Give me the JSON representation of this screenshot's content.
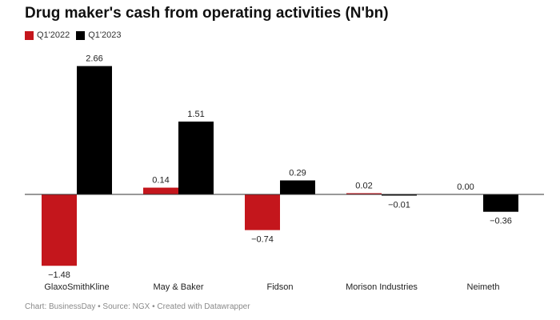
{
  "chart_data": {
    "type": "bar",
    "title": "Drug maker's cash from operating activities (N'bn)",
    "categories": [
      "GlaxoSmithKline",
      "May & Baker",
      "Fidson",
      "Morison Industries",
      "Neimeth"
    ],
    "series": [
      {
        "name": "Q1'2022",
        "color": "#c4161c",
        "values": [
          -1.48,
          0.14,
          -0.74,
          0.02,
          0.0
        ],
        "labels": [
          "−1.48",
          "0.14",
          "−0.74",
          "0.02",
          "0.00"
        ]
      },
      {
        "name": "Q1'2023",
        "color": "#000000",
        "values": [
          2.66,
          1.51,
          0.29,
          -0.01,
          -0.36
        ],
        "labels": [
          "2.66",
          "1.51",
          "0.29",
          "−0.01",
          "−0.36"
        ]
      }
    ],
    "ylim": [
      -1.48,
      2.66
    ],
    "legend_position": "top-left",
    "grid": false
  },
  "source": "Chart: BusinessDay • Source: NGX • Created with Datawrapper"
}
